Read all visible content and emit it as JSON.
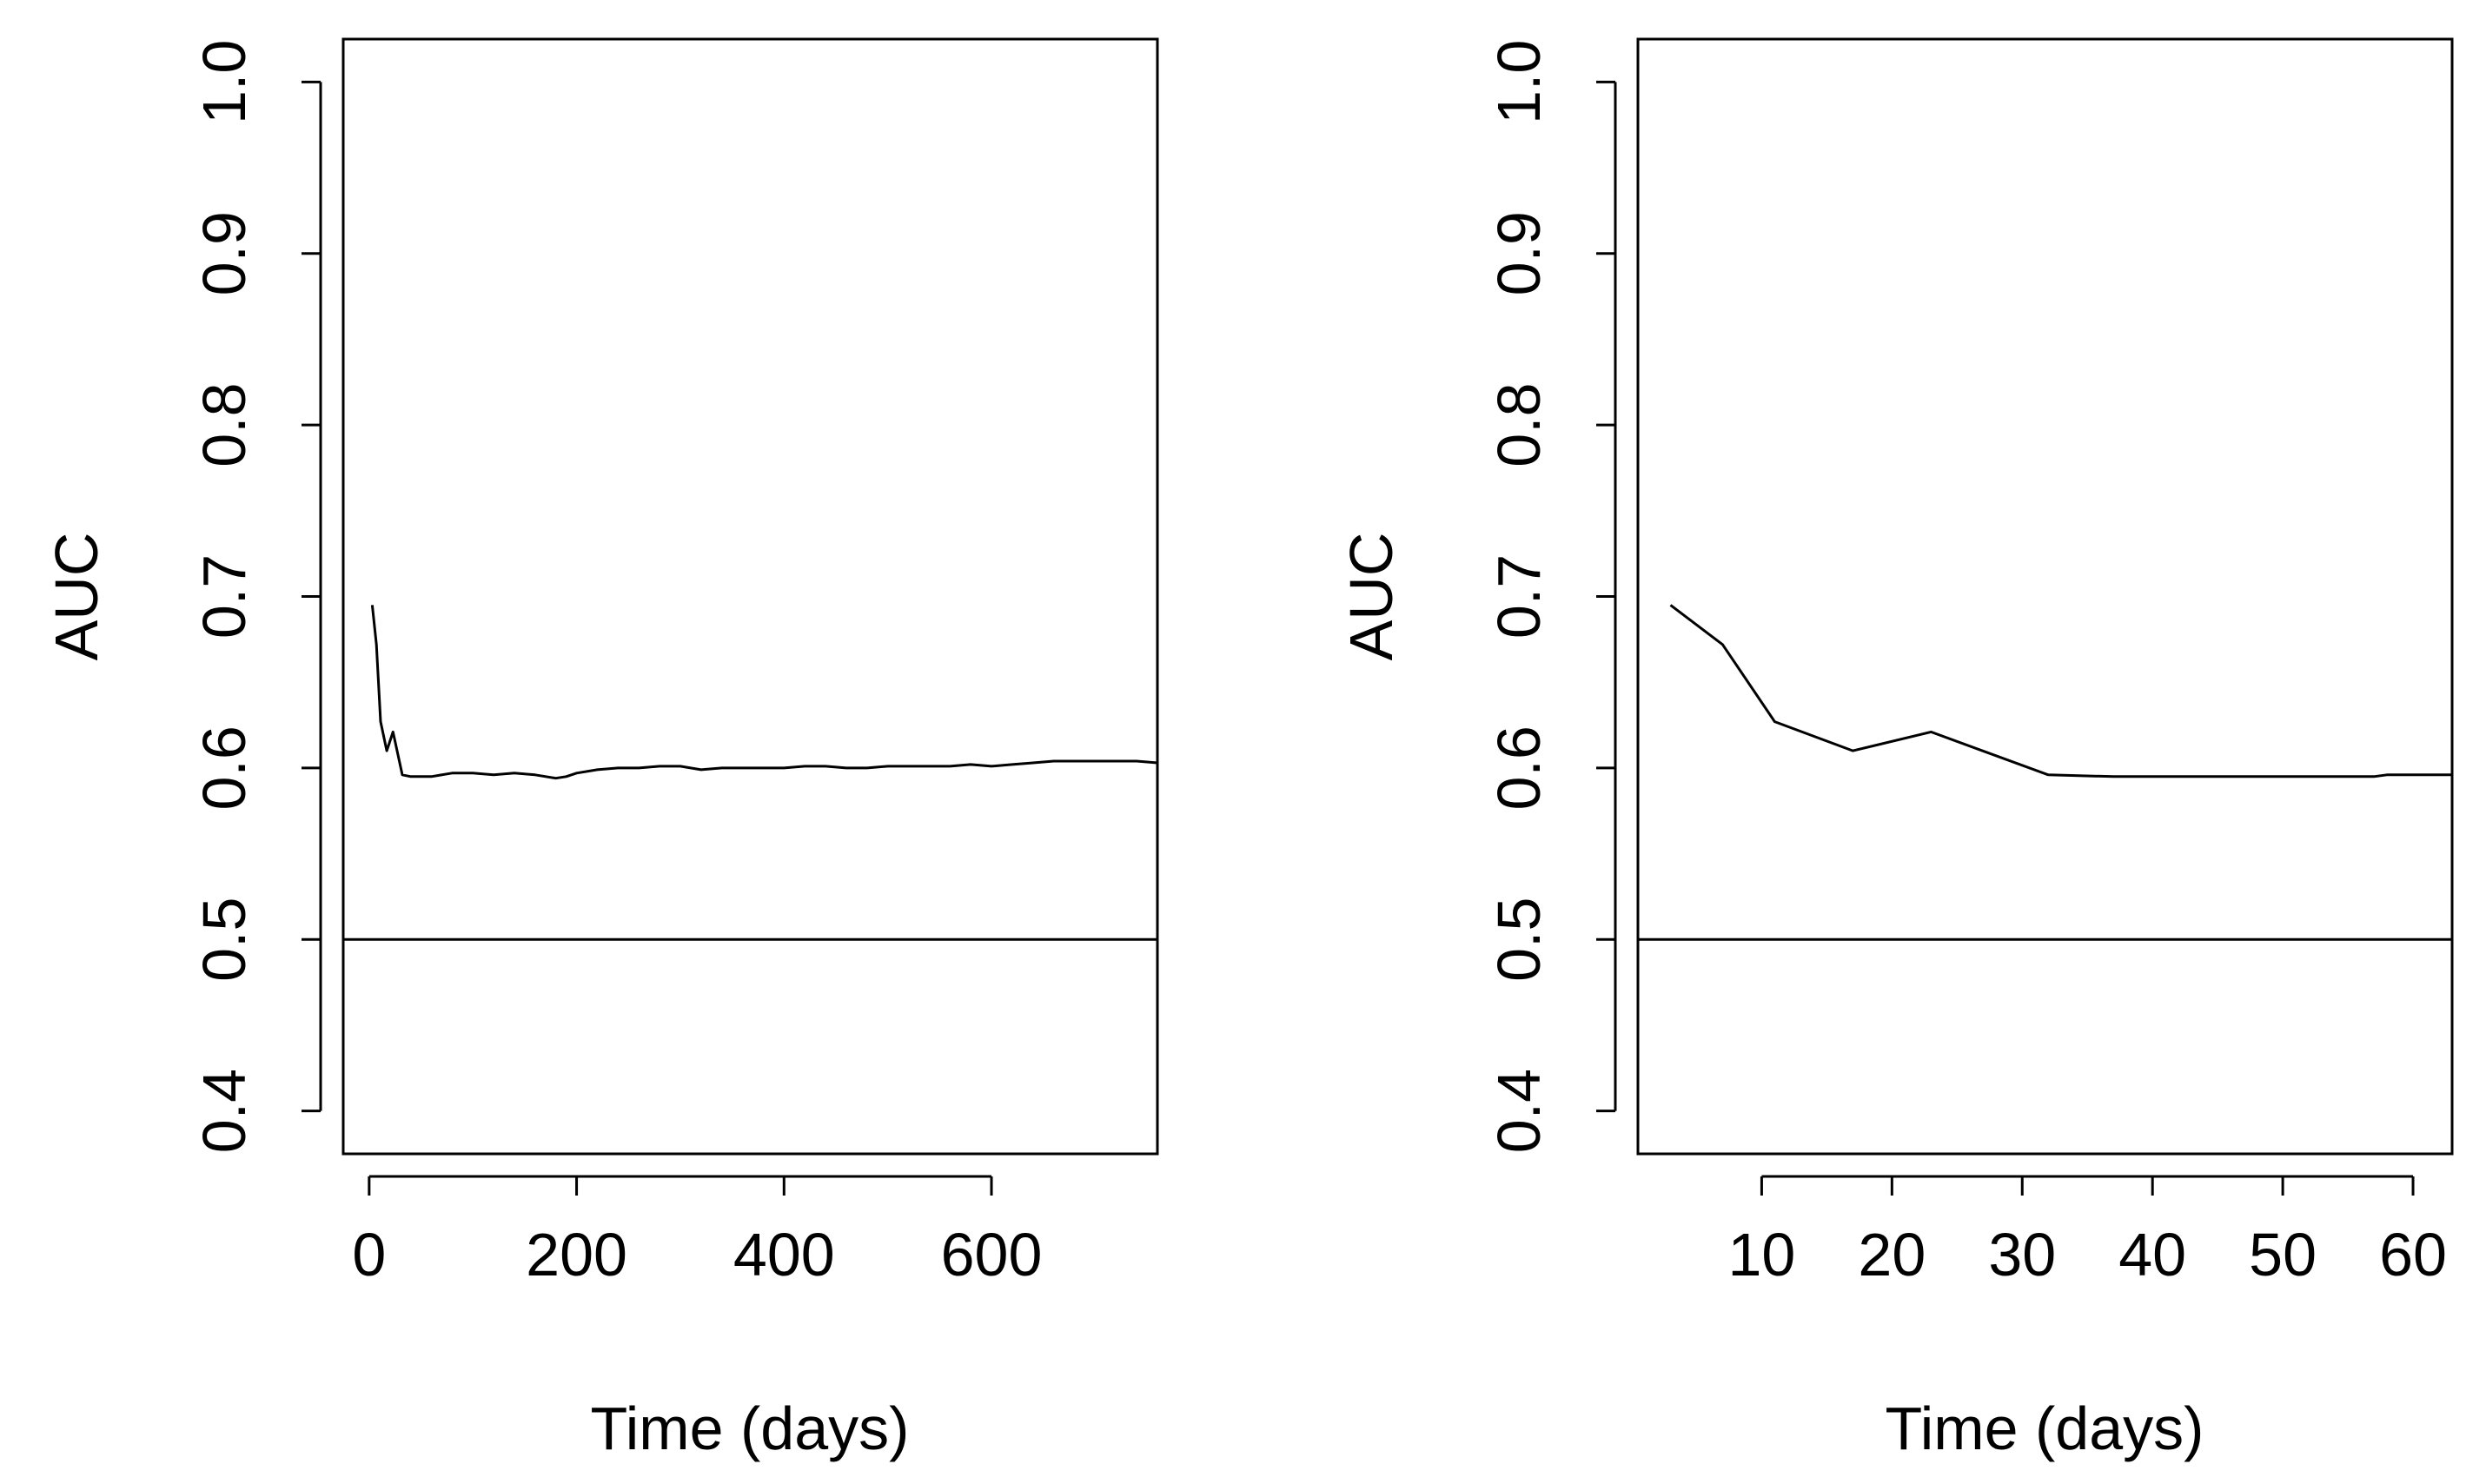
{
  "chart_data": [
    {
      "type": "line",
      "title": "",
      "xlabel": "Time (days)",
      "ylabel": "AUC",
      "xlim": [
        -25,
        760
      ],
      "ylim": [
        0.375,
        1.025
      ],
      "xticks": [
        0,
        200,
        400,
        600
      ],
      "xtick_labels": [
        "0",
        "200",
        "400",
        "600"
      ],
      "yticks": [
        0.4,
        0.5,
        0.6,
        0.7,
        0.8,
        0.9,
        1.0
      ],
      "ytick_labels": [
        "0.4",
        "0.5",
        "0.6",
        "0.7",
        "0.8",
        "0.9",
        "1.0"
      ],
      "grid": false,
      "reference_line": {
        "y": 0.5
      },
      "series": [
        {
          "name": "AUC",
          "x": [
            3,
            7,
            11,
            17,
            23,
            32,
            40,
            60,
            80,
            100,
            120,
            140,
            160,
            180,
            190,
            200,
            220,
            240,
            260,
            280,
            300,
            320,
            340,
            360,
            380,
            400,
            420,
            440,
            460,
            480,
            500,
            520,
            540,
            560,
            580,
            600,
            620,
            640,
            660,
            680,
            700,
            720,
            740,
            760
          ],
          "values": [
            0.695,
            0.672,
            0.627,
            0.61,
            0.621,
            0.596,
            0.595,
            0.595,
            0.597,
            0.597,
            0.596,
            0.597,
            0.596,
            0.594,
            0.595,
            0.597,
            0.599,
            0.6,
            0.6,
            0.601,
            0.601,
            0.599,
            0.6,
            0.6,
            0.6,
            0.6,
            0.601,
            0.601,
            0.6,
            0.6,
            0.601,
            0.601,
            0.601,
            0.601,
            0.602,
            0.601,
            0.602,
            0.603,
            0.604,
            0.604,
            0.604,
            0.604,
            0.604,
            0.603
          ]
        }
      ]
    },
    {
      "type": "line",
      "title": "",
      "xlabel": "Time (days)",
      "ylabel": "AUC",
      "xlim": [
        0.5,
        63
      ],
      "ylim": [
        0.375,
        1.025
      ],
      "xticks": [
        10,
        20,
        30,
        40,
        50,
        60
      ],
      "xtick_labels": [
        "10",
        "20",
        "30",
        "40",
        "50",
        "60"
      ],
      "yticks": [
        0.4,
        0.5,
        0.6,
        0.7,
        0.8,
        0.9,
        1.0
      ],
      "ytick_labels": [
        "0.4",
        "0.5",
        "0.6",
        "0.7",
        "0.8",
        "0.9",
        "1.0"
      ],
      "grid": false,
      "reference_line": {
        "y": 0.5
      },
      "series": [
        {
          "name": "AUC",
          "x": [
            3,
            7,
            11,
            17,
            23,
            32,
            37,
            57,
            58,
            63
          ],
          "values": [
            0.695,
            0.672,
            0.627,
            0.61,
            0.621,
            0.596,
            0.595,
            0.595,
            0.596,
            0.596
          ]
        }
      ]
    }
  ]
}
